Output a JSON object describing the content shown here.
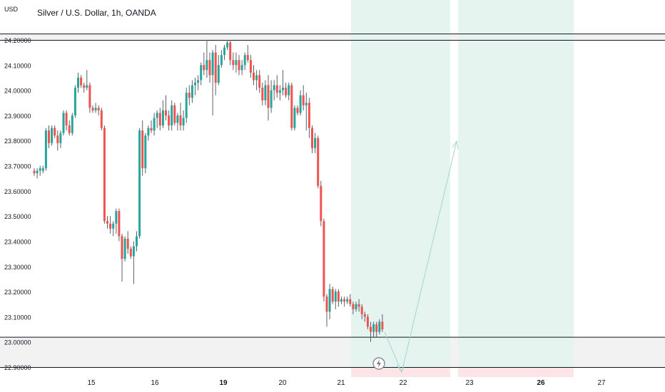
{
  "header": {
    "title": "Silver / U.S. Dollar, 1h, OANDA",
    "currency": "USD"
  },
  "colors": {
    "up": "#26a69a",
    "down": "#ef5350",
    "wick_dark": "#5d606b",
    "profit_zone": "#e6f4f0",
    "loss_zone": "#fde4e6",
    "zone_band": "#f2f2f2",
    "zone_line": "#131722",
    "arrow": "#a5d6cf",
    "axis_text": "#131722"
  },
  "chart_data": {
    "type": "candlestick",
    "title": "Silver / U.S. Dollar, 1h, OANDA",
    "ylabel": "USD",
    "ylim": [
      22.9,
      24.2
    ],
    "y_ticks": [
      "24.20000",
      "24.10000",
      "24.00000",
      "23.90000",
      "23.80000",
      "23.70000",
      "23.60000",
      "23.50000",
      "23.40000",
      "23.30000",
      "23.20000",
      "23.10000",
      "23.00000",
      "22.90000"
    ],
    "x_ticks": [
      {
        "label": "15",
        "bold": false
      },
      {
        "label": "16",
        "bold": false
      },
      {
        "label": "19",
        "bold": true
      },
      {
        "label": "20",
        "bold": false
      },
      {
        "label": "21",
        "bold": false
      },
      {
        "label": "22",
        "bold": false
      },
      {
        "label": "23",
        "bold": false
      },
      {
        "label": "26",
        "bold": true
      },
      {
        "label": "27",
        "bold": false
      }
    ],
    "candles": [
      [
        23.68,
        23.69,
        23.66,
        23.67
      ],
      [
        23.67,
        23.69,
        23.65,
        23.68
      ],
      [
        23.68,
        23.7,
        23.66,
        23.69
      ],
      [
        23.68,
        23.7,
        23.67,
        23.69
      ],
      [
        23.69,
        23.85,
        23.68,
        23.84
      ],
      [
        23.84,
        23.86,
        23.77,
        23.79
      ],
      [
        23.79,
        23.86,
        23.78,
        23.85
      ],
      [
        23.85,
        23.86,
        23.81,
        23.82
      ],
      [
        23.82,
        23.84,
        23.76,
        23.79
      ],
      [
        23.79,
        23.84,
        23.77,
        23.83
      ],
      [
        23.83,
        23.92,
        23.82,
        23.91
      ],
      [
        23.91,
        23.92,
        23.84,
        23.86
      ],
      [
        23.86,
        23.88,
        23.82,
        23.83
      ],
      [
        23.83,
        23.91,
        23.82,
        23.9
      ],
      [
        23.9,
        24.02,
        23.89,
        24.01
      ],
      [
        24.01,
        24.07,
        23.99,
        24.05
      ],
      [
        24.05,
        24.06,
        24.01,
        24.02
      ],
      [
        24.02,
        24.03,
        23.99,
        24.01
      ],
      [
        24.01,
        24.08,
        24.0,
        24.02
      ],
      [
        24.02,
        24.03,
        23.91,
        23.93
      ],
      [
        23.93,
        23.94,
        23.91,
        23.92
      ],
      [
        23.92,
        23.95,
        23.91,
        23.93
      ],
      [
        23.93,
        23.94,
        23.9,
        23.92
      ],
      [
        23.92,
        23.93,
        23.84,
        23.85
      ],
      [
        23.85,
        23.86,
        23.47,
        23.48
      ],
      [
        23.48,
        23.5,
        23.45,
        23.47
      ],
      [
        23.47,
        23.5,
        23.43,
        23.45
      ],
      [
        23.45,
        23.48,
        23.42,
        23.47
      ],
      [
        23.47,
        23.53,
        23.43,
        23.52
      ],
      [
        23.52,
        23.53,
        23.4,
        23.42
      ],
      [
        23.42,
        23.43,
        23.24,
        23.33
      ],
      [
        23.33,
        23.42,
        23.32,
        23.41
      ],
      [
        23.41,
        23.44,
        23.35,
        23.37
      ],
      [
        23.37,
        23.38,
        23.33,
        23.34
      ],
      [
        23.34,
        23.4,
        23.23,
        23.38
      ],
      [
        23.38,
        23.44,
        23.36,
        23.42
      ],
      [
        23.42,
        23.85,
        23.41,
        23.84
      ],
      [
        23.84,
        23.88,
        23.66,
        23.69
      ],
      [
        23.69,
        23.83,
        23.67,
        23.82
      ],
      [
        23.82,
        23.86,
        23.8,
        23.85
      ],
      [
        23.85,
        23.88,
        23.83,
        23.84
      ],
      [
        23.84,
        23.91,
        23.82,
        23.89
      ],
      [
        23.89,
        23.92,
        23.85,
        23.91
      ],
      [
        23.91,
        23.93,
        23.84,
        23.86
      ],
      [
        23.86,
        23.96,
        23.85,
        23.92
      ],
      [
        23.92,
        23.98,
        23.88,
        23.9
      ],
      [
        23.9,
        23.92,
        23.84,
        23.86
      ],
      [
        23.86,
        23.96,
        23.84,
        23.94
      ],
      [
        23.94,
        23.95,
        23.86,
        23.87
      ],
      [
        23.87,
        23.91,
        23.84,
        23.9
      ],
      [
        23.9,
        23.95,
        23.84,
        23.86
      ],
      [
        23.86,
        23.92,
        23.84,
        23.89
      ],
      [
        23.89,
        24.01,
        23.87,
        23.99
      ],
      [
        23.99,
        24.02,
        23.94,
        23.97
      ],
      [
        23.97,
        24.04,
        23.95,
        24.02
      ],
      [
        24.02,
        24.05,
        23.98,
        24.03
      ],
      [
        24.03,
        24.06,
        24.0,
        24.04
      ],
      [
        24.04,
        24.11,
        24.02,
        24.1
      ],
      [
        24.1,
        24.15,
        24.06,
        24.08
      ],
      [
        24.08,
        24.2,
        24.05,
        24.12
      ],
      [
        24.12,
        24.15,
        24.03,
        24.06
      ],
      [
        24.06,
        24.16,
        23.9,
        24.15
      ],
      [
        24.15,
        24.18,
        23.98,
        24.03
      ],
      [
        24.03,
        24.14,
        24.02,
        24.1
      ],
      [
        24.1,
        24.16,
        24.09,
        24.14
      ],
      [
        24.14,
        24.18,
        24.12,
        24.17
      ],
      [
        24.17,
        24.2,
        24.16,
        24.19
      ],
      [
        24.19,
        24.2,
        24.1,
        24.12
      ],
      [
        24.12,
        24.15,
        24.08,
        24.1
      ],
      [
        24.1,
        24.15,
        24.07,
        24.12
      ],
      [
        24.12,
        24.14,
        24.06,
        24.08
      ],
      [
        24.08,
        24.12,
        24.06,
        24.1
      ],
      [
        24.1,
        24.15,
        24.08,
        24.14
      ],
      [
        24.14,
        24.18,
        24.11,
        24.12
      ],
      [
        24.12,
        24.14,
        24.05,
        24.07
      ],
      [
        24.07,
        24.1,
        24.02,
        24.04
      ],
      [
        24.04,
        24.08,
        24.0,
        24.06
      ],
      [
        24.06,
        24.08,
        23.99,
        24.01
      ],
      [
        24.01,
        24.03,
        23.94,
        23.96
      ],
      [
        23.96,
        24.04,
        23.94,
        24.02
      ],
      [
        24.02,
        24.06,
        23.88,
        23.93
      ],
      [
        23.93,
        24.04,
        23.91,
        24.0
      ],
      [
        24.0,
        24.04,
        23.96,
        24.02
      ],
      [
        24.02,
        24.06,
        23.97,
        23.99
      ],
      [
        23.99,
        24.02,
        23.96,
        24.0
      ],
      [
        24.0,
        24.08,
        23.98,
        24.01
      ],
      [
        24.01,
        24.03,
        23.97,
        23.98
      ],
      [
        23.98,
        24.03,
        23.96,
        24.02
      ],
      [
        24.02,
        24.03,
        23.84,
        23.85
      ],
      [
        23.85,
        23.94,
        23.84,
        23.93
      ],
      [
        23.93,
        23.94,
        23.9,
        23.91
      ],
      [
        23.91,
        24.0,
        23.9,
        23.98
      ],
      [
        23.98,
        24.02,
        23.92,
        23.94
      ],
      [
        23.94,
        23.99,
        23.84,
        23.95
      ],
      [
        23.95,
        23.97,
        23.81,
        23.85
      ],
      [
        23.85,
        23.86,
        23.75,
        23.77
      ],
      [
        23.77,
        23.83,
        23.75,
        23.81
      ],
      [
        23.81,
        23.82,
        23.61,
        23.62
      ],
      [
        23.62,
        23.64,
        23.46,
        23.48
      ],
      [
        23.48,
        23.49,
        23.16,
        23.18
      ],
      [
        23.18,
        23.19,
        23.06,
        23.12
      ],
      [
        23.12,
        23.23,
        23.09,
        23.21
      ],
      [
        23.21,
        23.22,
        23.15,
        23.16
      ],
      [
        23.16,
        23.21,
        23.13,
        23.2
      ],
      [
        23.2,
        23.21,
        23.14,
        23.16
      ],
      [
        23.16,
        23.18,
        23.15,
        23.17
      ],
      [
        23.17,
        23.18,
        23.14,
        23.16
      ],
      [
        23.16,
        23.18,
        23.15,
        23.17
      ],
      [
        23.17,
        23.19,
        23.14,
        23.15
      ],
      [
        23.15,
        23.16,
        23.11,
        23.13
      ],
      [
        23.13,
        23.16,
        23.12,
        23.15
      ],
      [
        23.15,
        23.17,
        23.12,
        23.14
      ],
      [
        23.14,
        23.15,
        23.09,
        23.11
      ],
      [
        23.11,
        23.12,
        23.08,
        23.1
      ],
      [
        23.1,
        23.11,
        23.05,
        23.06
      ],
      [
        23.06,
        23.08,
        23.0,
        23.04
      ],
      [
        23.04,
        23.08,
        23.02,
        23.07
      ],
      [
        23.07,
        23.08,
        23.02,
        23.04
      ],
      [
        23.04,
        23.09,
        23.03,
        23.08
      ],
      [
        23.08,
        23.11,
        23.04,
        23.05
      ]
    ],
    "horizontal_lines": [
      24.225,
      24.2,
      23.02,
      22.9
    ],
    "shaded_bands": [
      {
        "from": 24.2,
        "to": 24.225
      },
      {
        "from": 22.9,
        "to": 23.02
      }
    ],
    "positions": [
      {
        "type": "long",
        "entry": 22.9,
        "target_top": 24.2,
        "stop_bottom": 22.88,
        "from_time": "21",
        "to_time": "22"
      },
      {
        "type": "long",
        "entry": 22.9,
        "target_top": 24.2,
        "stop_bottom": 22.88,
        "from_time": "23",
        "to_time": "26"
      }
    ],
    "projection_path": [
      [
        23.05,
        "21"
      ],
      [
        22.9,
        "22"
      ],
      [
        23.8,
        "23"
      ]
    ]
  }
}
